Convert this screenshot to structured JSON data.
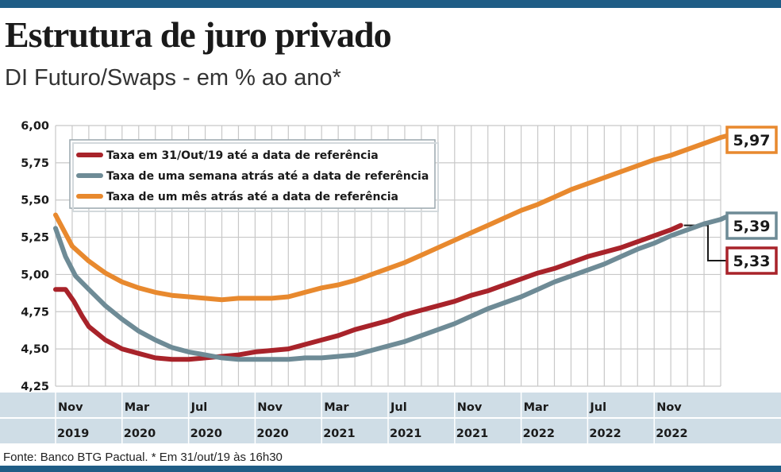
{
  "header": {
    "title": "Estrutura de juro privado",
    "subtitle": "DI Futuro/Swaps - em % ao ano*"
  },
  "footer": {
    "source": "Fonte: Banco BTG Pactual. * Em 31/out/19 às 16h30"
  },
  "colors": {
    "accent_bar": "#1f5d86",
    "axis_band": "#cfdde6",
    "grid": "#c8c8c8"
  },
  "chart_data": {
    "type": "line",
    "x_months": [
      "Nov",
      "Mar",
      "Jul",
      "Nov",
      "Mar",
      "Jul",
      "Nov",
      "Mar",
      "Jul",
      "Nov"
    ],
    "x_years": [
      "2019",
      "2020",
      "2020",
      "2020",
      "2021",
      "2021",
      "2021",
      "2022",
      "2022",
      "2022"
    ],
    "y_ticks": [
      "6,00",
      "5,75",
      "5,50",
      "5,25",
      "5,00",
      "4,75",
      "4,50",
      "4,25"
    ],
    "ylim": [
      4.25,
      6.0
    ],
    "grid": true,
    "legend_position": "top-left",
    "series": [
      {
        "name": "Taxa em 31/Out/19 até a data de referência",
        "color": "#a8232a",
        "end_label": "5,33",
        "points": [
          [
            0,
            4.9
          ],
          [
            0.3,
            4.9
          ],
          [
            0.55,
            4.82
          ],
          [
            0.8,
            4.72
          ],
          [
            1,
            4.65
          ],
          [
            1.5,
            4.56
          ],
          [
            2,
            4.5
          ],
          [
            2.5,
            4.47
          ],
          [
            3,
            4.44
          ],
          [
            3.5,
            4.43
          ],
          [
            4,
            4.43
          ],
          [
            4.5,
            4.44
          ],
          [
            5,
            4.45
          ],
          [
            5.5,
            4.46
          ],
          [
            6,
            4.48
          ],
          [
            6.5,
            4.49
          ],
          [
            7,
            4.5
          ],
          [
            7.5,
            4.53
          ],
          [
            8,
            4.56
          ],
          [
            8.5,
            4.59
          ],
          [
            9,
            4.63
          ],
          [
            9.5,
            4.66
          ],
          [
            10,
            4.69
          ],
          [
            10.5,
            4.73
          ],
          [
            11,
            4.76
          ],
          [
            11.5,
            4.79
          ],
          [
            12,
            4.82
          ],
          [
            12.5,
            4.86
          ],
          [
            13,
            4.89
          ],
          [
            13.5,
            4.93
          ],
          [
            14,
            4.97
          ],
          [
            14.5,
            5.01
          ],
          [
            15,
            5.04
          ],
          [
            15.5,
            5.08
          ],
          [
            16,
            5.12
          ],
          [
            16.5,
            5.15
          ],
          [
            17,
            5.18
          ],
          [
            17.5,
            5.22
          ],
          [
            18,
            5.26
          ],
          [
            18.5,
            5.3
          ],
          [
            18.8,
            5.33
          ]
        ]
      },
      {
        "name": "Taxa de uma semana atrás até a data de referência",
        "color": "#6e8b96",
        "end_label": "5,39",
        "points": [
          [
            0,
            5.31
          ],
          [
            0.3,
            5.12
          ],
          [
            0.6,
            4.99
          ],
          [
            1,
            4.9
          ],
          [
            1.5,
            4.79
          ],
          [
            2,
            4.7
          ],
          [
            2.5,
            4.62
          ],
          [
            3,
            4.56
          ],
          [
            3.5,
            4.51
          ],
          [
            4,
            4.48
          ],
          [
            4.5,
            4.46
          ],
          [
            5,
            4.44
          ],
          [
            5.5,
            4.43
          ],
          [
            6,
            4.43
          ],
          [
            6.5,
            4.43
          ],
          [
            7,
            4.43
          ],
          [
            7.5,
            4.44
          ],
          [
            8,
            4.44
          ],
          [
            8.5,
            4.45
          ],
          [
            9,
            4.46
          ],
          [
            9.5,
            4.49
          ],
          [
            10,
            4.52
          ],
          [
            10.5,
            4.55
          ],
          [
            11,
            4.59
          ],
          [
            11.5,
            4.63
          ],
          [
            12,
            4.67
          ],
          [
            12.5,
            4.72
          ],
          [
            13,
            4.77
          ],
          [
            13.5,
            4.81
          ],
          [
            14,
            4.85
          ],
          [
            14.5,
            4.9
          ],
          [
            15,
            4.95
          ],
          [
            15.5,
            4.99
          ],
          [
            16,
            5.03
          ],
          [
            16.5,
            5.07
          ],
          [
            17,
            5.12
          ],
          [
            17.5,
            5.17
          ],
          [
            18,
            5.21
          ],
          [
            18.5,
            5.26
          ],
          [
            19,
            5.3
          ],
          [
            19.5,
            5.34
          ],
          [
            20,
            5.37
          ],
          [
            20.2,
            5.39
          ]
        ]
      },
      {
        "name": "Taxa de um mês atrás até a data de referência",
        "color": "#e8892e",
        "end_label": "5,97",
        "points": [
          [
            0,
            5.4
          ],
          [
            0.5,
            5.19
          ],
          [
            1,
            5.09
          ],
          [
            1.5,
            5.01
          ],
          [
            2,
            4.95
          ],
          [
            2.5,
            4.91
          ],
          [
            3,
            4.88
          ],
          [
            3.5,
            4.86
          ],
          [
            4,
            4.85
          ],
          [
            4.5,
            4.84
          ],
          [
            5,
            4.83
          ],
          [
            5.5,
            4.84
          ],
          [
            6,
            4.84
          ],
          [
            6.5,
            4.84
          ],
          [
            7,
            4.85
          ],
          [
            7.5,
            4.88
          ],
          [
            8,
            4.91
          ],
          [
            8.5,
            4.93
          ],
          [
            9,
            4.96
          ],
          [
            9.5,
            5.0
          ],
          [
            10,
            5.04
          ],
          [
            10.5,
            5.08
          ],
          [
            11,
            5.13
          ],
          [
            11.5,
            5.18
          ],
          [
            12,
            5.23
          ],
          [
            12.5,
            5.28
          ],
          [
            13,
            5.33
          ],
          [
            13.5,
            5.38
          ],
          [
            14,
            5.43
          ],
          [
            14.5,
            5.47
          ],
          [
            15,
            5.52
          ],
          [
            15.5,
            5.57
          ],
          [
            16,
            5.61
          ],
          [
            16.5,
            5.65
          ],
          [
            17,
            5.69
          ],
          [
            17.5,
            5.73
          ],
          [
            18,
            5.77
          ],
          [
            18.5,
            5.8
          ],
          [
            19,
            5.84
          ],
          [
            19.5,
            5.88
          ],
          [
            20,
            5.92
          ],
          [
            20.5,
            5.95
          ],
          [
            20.9,
            5.97
          ]
        ]
      }
    ]
  }
}
